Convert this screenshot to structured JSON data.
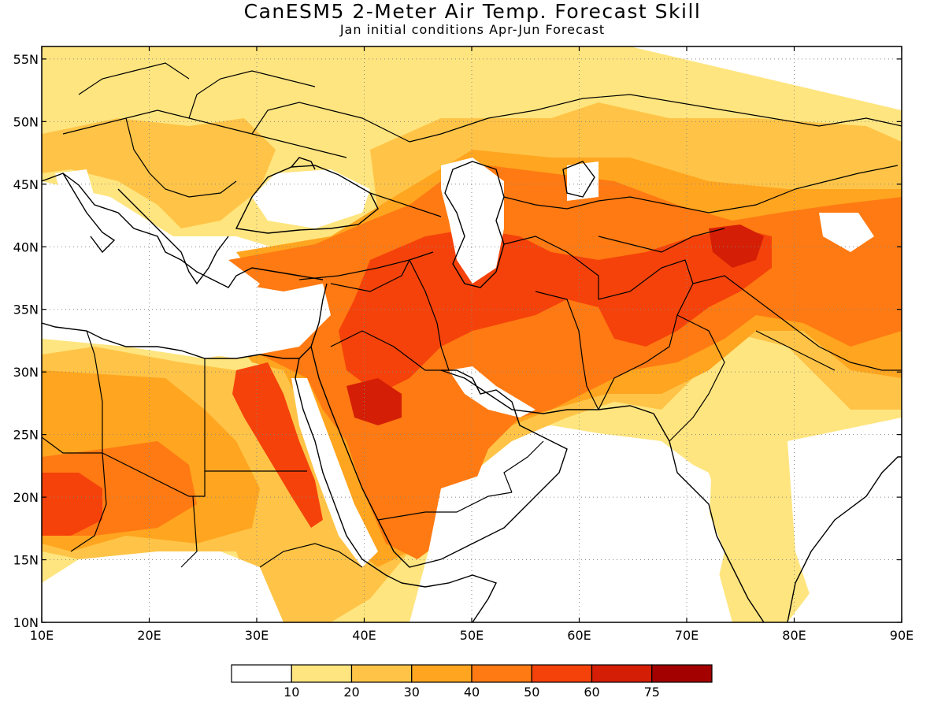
{
  "title": "CanESM5 2-Meter Air Temp. Forecast Skill",
  "subtitle": "Jan initial conditions  Apr-Jun Forecast",
  "map": {
    "lon_range": [
      10,
      90
    ],
    "lat_range": [
      10,
      56
    ],
    "x_ticks": [
      "10E",
      "20E",
      "30E",
      "40E",
      "50E",
      "60E",
      "70E",
      "80E",
      "90E"
    ],
    "y_ticks": [
      "10N",
      "15N",
      "20N",
      "25N",
      "30N",
      "35N",
      "40N",
      "45N",
      "50N",
      "55N"
    ],
    "grid": "dotted"
  },
  "colorbar": {
    "colors": [
      "#ffffff",
      "#ffe57f",
      "#ffc447",
      "#ffa51f",
      "#ff7a12",
      "#f5420a",
      "#d41e05",
      "#a30000"
    ],
    "labels": [
      "10",
      "20",
      "30",
      "40",
      "50",
      "60",
      "75"
    ]
  },
  "colors": {
    "land_line": "#000000",
    "background": "#ffffff"
  }
}
